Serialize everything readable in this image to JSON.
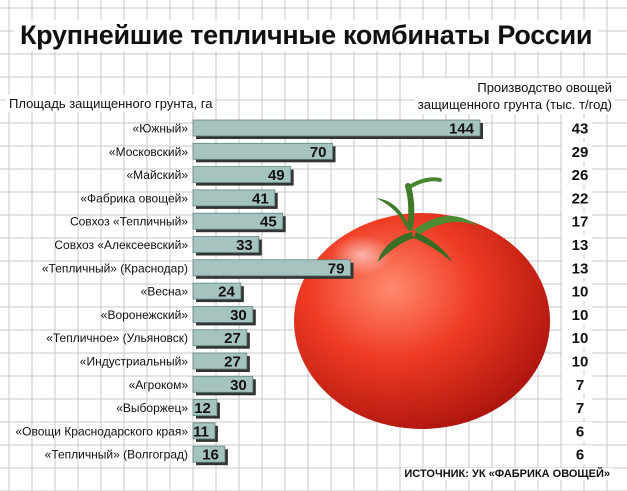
{
  "title": "Крупнейшие тепличные комбинаты России",
  "left_axis_label": "Площадь защищенного грунта, га",
  "right_axis_label_line1": "Производство овощей",
  "right_axis_label_line2": "защищенного грунта (тыс. т/год)",
  "source": "ИСТОЧНИК: УК «ФАБРИКА ОВОЩЕЙ»",
  "colors": {
    "bar_fill": "#a5c3bf",
    "bar_stroke": "#5f8581",
    "bar_shadow": "#333333",
    "grid": "#c8c8c8"
  },
  "chart_data": {
    "type": "bar",
    "orientation": "horizontal",
    "categories": [
      "«Южный»",
      "«Московский»",
      "«Майский»",
      "«Фабрика овощей»",
      "Совхоз «Тепличный»",
      "Совхоз «Алексеевский»",
      "«Тепличный» (Краснодар)",
      "«Весна»",
      "«Воронежский»",
      "«Тепличное» (Ульяновск)",
      "«Индустриальный»",
      "«Агроком»",
      "«Выборжец»",
      "«Овощи Краснодарского края»",
      "«Тепличный» (Волгоград)"
    ],
    "series": [
      {
        "name": "Площадь защищенного грунта, га",
        "values": [
          144,
          70,
          49,
          41,
          45,
          33,
          79,
          24,
          30,
          27,
          27,
          30,
          12,
          11,
          16
        ]
      },
      {
        "name": "Производство овощей защищенного грунта (тыс. т/год)",
        "values": [
          43,
          29,
          26,
          22,
          17,
          13,
          13,
          10,
          10,
          10,
          10,
          7,
          7,
          6,
          6
        ]
      }
    ],
    "xlim": [
      0,
      144
    ]
  }
}
